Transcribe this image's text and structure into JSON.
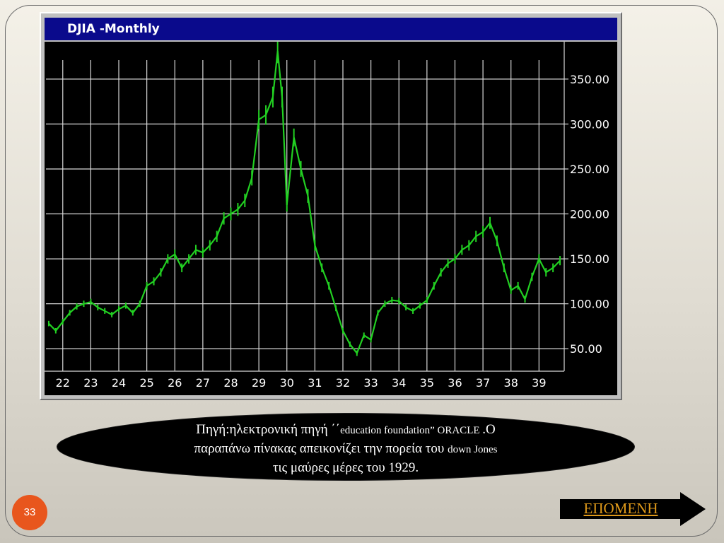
{
  "slide": {
    "page_number": "33",
    "next_label": "ΕΠΟΜΕΝΗ",
    "caption": {
      "line1_a": "Πηγή:ηλεκτρονική πηγή ΄΄",
      "line1_b": "education foundation” ORACLE ",
      "line1_c": ".Ο",
      "line2_a": "παραπάνω πίνακας απεικονίζει την πορεία του ",
      "line2_b": "down  Jones",
      "line3": "τις μαύρες μέρες του 1929."
    }
  },
  "colors": {
    "plot_background": "#000000",
    "grid": "#d8d8d8",
    "series": "#22d022",
    "title_bar": "#0a0a8c",
    "page_badge": "#e8561d",
    "next_text": "#e09a1a"
  },
  "chart_data": {
    "type": "line",
    "title": "DJIA -Monthly",
    "x_tick_labels": [
      "22",
      "23",
      "24",
      "25",
      "26",
      "27",
      "28",
      "29",
      "30",
      "31",
      "32",
      "33",
      "34",
      "35",
      "36",
      "37",
      "38",
      "39"
    ],
    "x_ticks": [
      1922,
      1923,
      1924,
      1925,
      1926,
      1927,
      1928,
      1929,
      1930,
      1931,
      1932,
      1933,
      1934,
      1935,
      1936,
      1937,
      1938,
      1939
    ],
    "y_tick_labels": [
      "50.00",
      "100.00",
      "150.00",
      "200.00",
      "250.00",
      "300.00",
      "350.00"
    ],
    "y_ticks": [
      50,
      100,
      150,
      200,
      250,
      300,
      350
    ],
    "xlim": [
      1921.4,
      1939.9
    ],
    "ylim": [
      25,
      390
    ],
    "grid": true,
    "series": [
      {
        "x": [
          1921.5,
          1921.75,
          1922.0,
          1922.25,
          1922.5,
          1922.75,
          1923.0,
          1923.25,
          1923.5,
          1923.75,
          1924.0,
          1924.25,
          1924.5,
          1924.75,
          1925.0,
          1925.25,
          1925.5,
          1925.75,
          1926.0,
          1926.25,
          1926.5,
          1926.75,
          1927.0,
          1927.25,
          1927.5,
          1927.75,
          1928.0,
          1928.25,
          1928.5,
          1928.75,
          1929.0,
          1929.25,
          1929.5,
          1929.67,
          1929.83,
          1930.0,
          1930.25,
          1930.5,
          1930.75,
          1931.0,
          1931.25,
          1931.5,
          1931.75,
          1932.0,
          1932.25,
          1932.5,
          1932.75,
          1933.0,
          1933.25,
          1933.5,
          1933.75,
          1934.0,
          1934.25,
          1934.5,
          1934.75,
          1935.0,
          1935.25,
          1935.5,
          1935.75,
          1936.0,
          1936.25,
          1936.5,
          1936.75,
          1937.0,
          1937.25,
          1937.5,
          1937.75,
          1938.0,
          1938.25,
          1938.5,
          1938.75,
          1939.0,
          1939.25,
          1939.5,
          1939.75
        ],
        "y": [
          78,
          70,
          80,
          90,
          97,
          100,
          102,
          96,
          92,
          88,
          94,
          98,
          90,
          100,
          120,
          125,
          135,
          150,
          155,
          140,
          150,
          160,
          157,
          165,
          175,
          195,
          200,
          205,
          215,
          240,
          305,
          310,
          330,
          381,
          330,
          210,
          285,
          250,
          220,
          165,
          140,
          120,
          95,
          70,
          55,
          45,
          65,
          60,
          90,
          100,
          104,
          103,
          96,
          92,
          98,
          104,
          120,
          135,
          145,
          150,
          160,
          165,
          175,
          180,
          190,
          170,
          140,
          115,
          120,
          105,
          130,
          150,
          135,
          140,
          148
        ]
      }
    ]
  }
}
